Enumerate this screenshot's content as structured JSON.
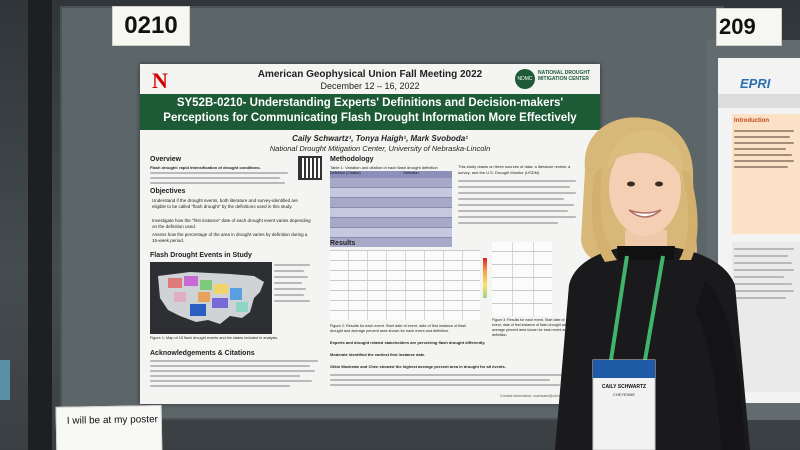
{
  "booth": {
    "left_number": "0210",
    "right_number": "209"
  },
  "poster": {
    "conference": "American Geophysical Union Fall Meeting 2022",
    "dates": "December 12 – 16, 2022",
    "center_logo_text": "NDMC",
    "center_name": "NATIONAL DROUGHT MITIGATION CENTER",
    "title": "SY52B-0210- Understanding Experts' Definitions and Decision-makers' Perceptions for Communicating Flash Drought Information More Effectively",
    "authors": "Caily Schwartz¹, Tonya Haigh¹, Mark Svoboda¹",
    "affiliation": "National Drought Mitigation Center, University of Nebraska-Lincoln",
    "overview_heading": "Overview",
    "overview_lead": "Flash drought: rapid intensification of drought conditions.",
    "objectives_heading": "Objectives",
    "objectives": [
      "Understand if the drought events, both literature and survey-identified are eligible to be called “flash drought” by the definitions used in this study.",
      "Investigate how the “first instance” date of each drought event varies depending on the definition used.",
      "Assess how the percentage of the area in drought varies by definition during a 15-week period."
    ],
    "map_heading": "Flash Drought Events in Study",
    "map_caption": "Figure 1: Map of 15 flash drought events and the states included in analysis.",
    "ack_heading": "Acknowledgements & Citations",
    "methodology_heading": "Methodology",
    "table_caption": "Table 1: Variation and citation of each flash drought definition",
    "table_headers": [
      "Definition (Citation)",
      "Definition"
    ],
    "results_heading": "Results",
    "figure2_caption": "Figure 2: Results for each event. Start date of event, date of first instance of flash drought and average percent area shown for each event and definition.",
    "figure3_caption": "Figure 3: Results for each event. Start date of event, date of first instance of flash drought and average percent area shown for each event and definition.",
    "text_block": "This study draws on three sources of data: a literature review, a survey, and the U.S. Drought Monitor (USDM)",
    "result_bold_1": "Experts and drought related stakeholders are perceiving flash drought differently.",
    "result_bold_2": "Moderate identified the earliest first instance date.",
    "result_bold_3": "Otkin Moderate and Chen showed the highest average percent area in drought for all events.",
    "contact": "Contact information: cschwartz@unl.edu"
  },
  "side_poster": {
    "logo": "EPRI",
    "heading": "Introduction"
  },
  "badge": {
    "name": "CAILY SCHWARTZ",
    "org": "CHEYENNE"
  },
  "sign": {
    "text": "I will be at my poster"
  },
  "colors": {
    "poster_green": "#1d5a36",
    "nebraska_red": "#d00000",
    "lanyard_green": "#3fb46a",
    "table_purple": "#a7a9c9"
  }
}
